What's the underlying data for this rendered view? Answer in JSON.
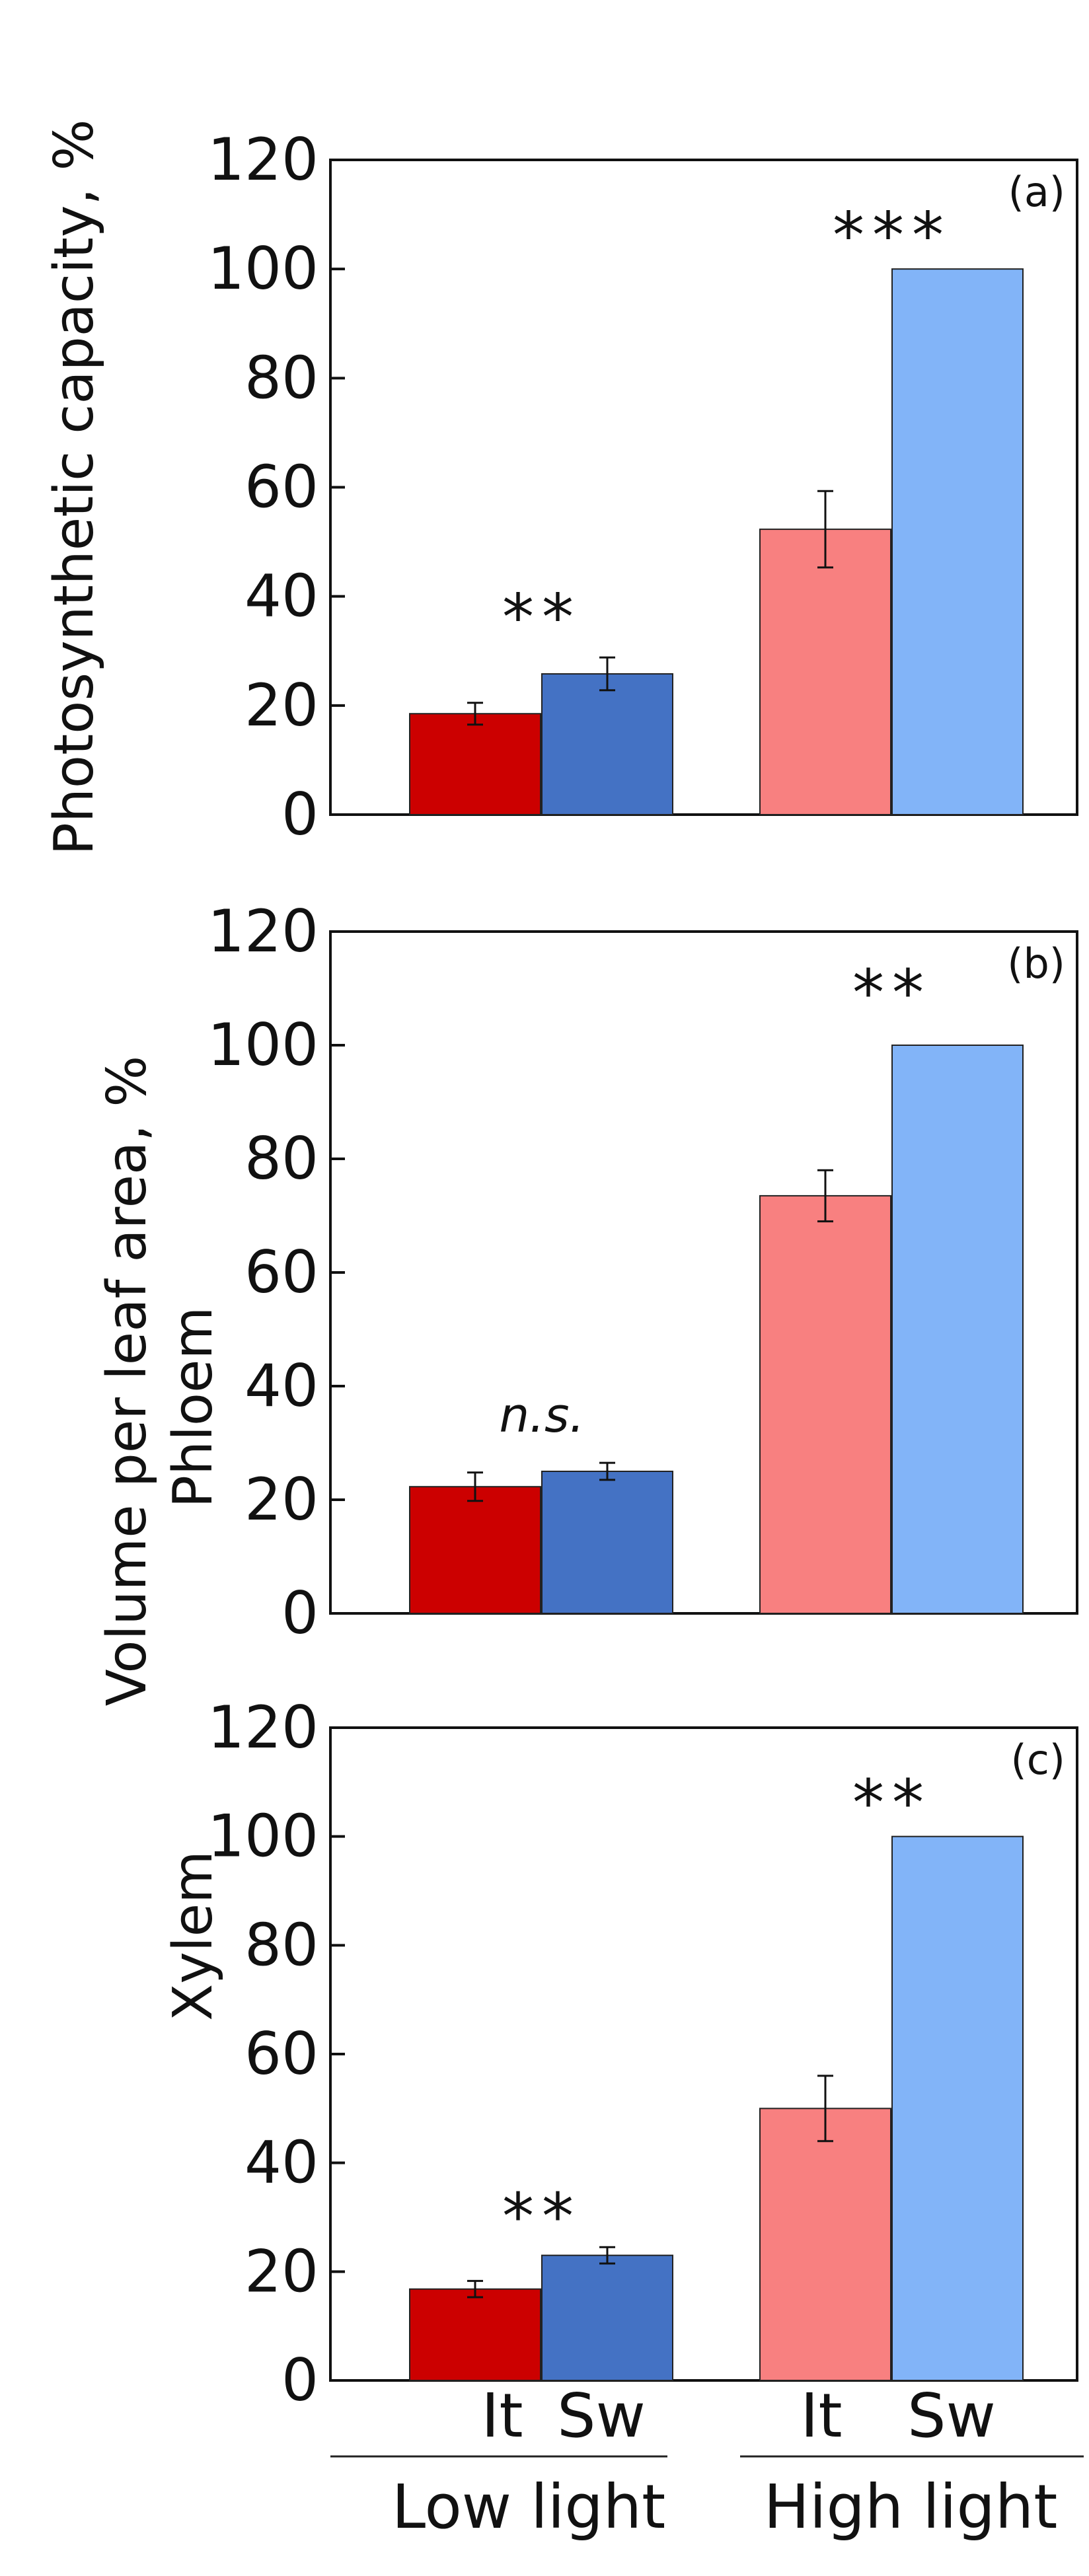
{
  "chart_data": [
    {
      "type": "bar",
      "panel_label": "(a)",
      "ylabel": "Photosynthetic capacity, %",
      "ylim": [
        0,
        120
      ],
      "yticks": [
        "0",
        "20",
        "40",
        "60",
        "80",
        "100",
        "120"
      ],
      "categories": [
        "Low light It",
        "Low light Sw",
        "High light It",
        "High light Sw"
      ],
      "values": [
        18.5,
        25.8,
        52.3,
        100.0
      ],
      "errors": [
        2.0,
        3.0,
        7.0,
        0
      ],
      "colors": [
        "#cc0000",
        "#4472c4",
        "#f88080",
        "#82b4f8"
      ],
      "significance": [
        {
          "group": "Low light",
          "label": "**",
          "y": 37
        },
        {
          "group": "High light",
          "label": "***",
          "y": 107
        }
      ]
    },
    {
      "type": "bar",
      "panel_label": "(b)",
      "ylim": [
        0,
        120
      ],
      "yticks": [
        "0",
        "20",
        "40",
        "60",
        "80",
        "100",
        "120"
      ],
      "categories": [
        "Low light It",
        "Low light Sw",
        "High light It",
        "High light Sw"
      ],
      "values": [
        22.3,
        25.0,
        73.5,
        100.0
      ],
      "errors": [
        2.5,
        1.5,
        4.5,
        0
      ],
      "colors": [
        "#cc0000",
        "#4472c4",
        "#f88080",
        "#82b4f8"
      ],
      "significance": [
        {
          "group": "Low light",
          "label": "n.s.",
          "y": 32
        },
        {
          "group": "High light",
          "label": "**",
          "y": 110
        }
      ]
    },
    {
      "type": "bar",
      "panel_label": "(c)",
      "ylim": [
        0,
        120
      ],
      "yticks": [
        "0",
        "20",
        "40",
        "60",
        "80",
        "100",
        "120"
      ],
      "categories": [
        "Low light It",
        "Low light Sw",
        "High light It",
        "High light Sw"
      ],
      "values": [
        16.8,
        23.0,
        50.0,
        100.0
      ],
      "errors": [
        1.5,
        1.5,
        6.0,
        0
      ],
      "colors": [
        "#cc0000",
        "#4472c4",
        "#f88080",
        "#82b4f8"
      ],
      "significance": [
        {
          "group": "Low light",
          "label": "**",
          "y": 31
        },
        {
          "group": "High light",
          "label": "**",
          "y": 107
        }
      ]
    }
  ],
  "shared_ylabel": "Volume per leaf area, %",
  "row_labels": {
    "phloem": "Phloem",
    "xylem": "Xylem"
  },
  "xtick_labels": [
    "It",
    "Sw",
    "It",
    "Sw"
  ],
  "group_labels": [
    "Low light",
    "High light"
  ]
}
